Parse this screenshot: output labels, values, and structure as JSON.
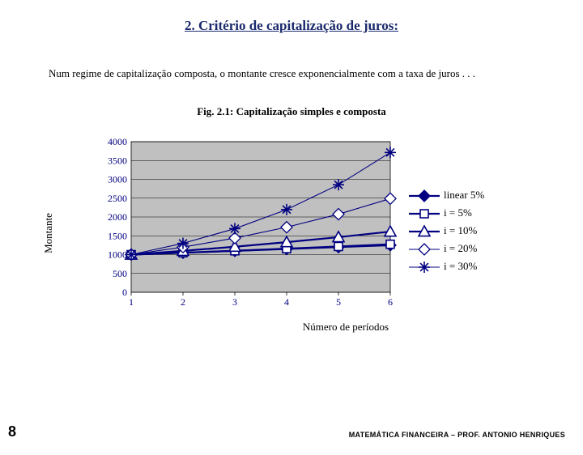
{
  "title": "2. Critério de capitalização de juros:",
  "intro": "Num regime de capitalização composta, o montante cresce exponencialmente com a taxa de juros . . .",
  "fig_caption": "Fig. 2.1: Capitalização simples e composta",
  "chart": {
    "ylabel": "Montante",
    "xlabel": "Número de períodos",
    "xticks": [
      "1",
      "2",
      "3",
      "4",
      "5",
      "6"
    ],
    "yticks": [
      "0",
      "500",
      "1000",
      "1500",
      "2000",
      "2500",
      "3000",
      "3500",
      "4000"
    ],
    "ylim": [
      0,
      4000
    ],
    "xlim": [
      1,
      6
    ],
    "grid_color": "#000000",
    "background_color": "#c0c0c0",
    "tick_fontsize": 12,
    "tick_color": "#000080",
    "series": [
      {
        "label": "linear 5%",
        "color": "#000080",
        "marker": "diamond",
        "marker_size": 7,
        "stroke_width": 2.2,
        "y": [
          1000,
          1050,
          1100,
          1150,
          1200,
          1250
        ]
      },
      {
        "label": "i = 5%",
        "color": "#000080",
        "marker": "square",
        "marker_size": 6,
        "stroke_width": 2.2,
        "y": [
          1000,
          1050,
          1102,
          1158,
          1216,
          1276
        ]
      },
      {
        "label": "i = 10%",
        "color": "#000080",
        "marker": "triangle",
        "marker_size": 7,
        "stroke_width": 2.2,
        "y": [
          1000,
          1100,
          1210,
          1331,
          1464,
          1611
        ]
      },
      {
        "label": "i = 20%",
        "color": "#000080",
        "marker": "diamond-open",
        "marker_size": 7,
        "stroke_width": 1.1,
        "y": [
          1000,
          1200,
          1440,
          1728,
          2074,
          2488
        ]
      },
      {
        "label": "i = 30%",
        "color": "#000080",
        "marker": "star",
        "marker_size": 7,
        "stroke_width": 1.1,
        "y": [
          1000,
          1300,
          1690,
          2197,
          2856,
          3713
        ]
      }
    ]
  },
  "page_number": "8",
  "footer": "MATEMÁTICA FINANCEIRA – PROF. ANTONIO HENRIQUES"
}
